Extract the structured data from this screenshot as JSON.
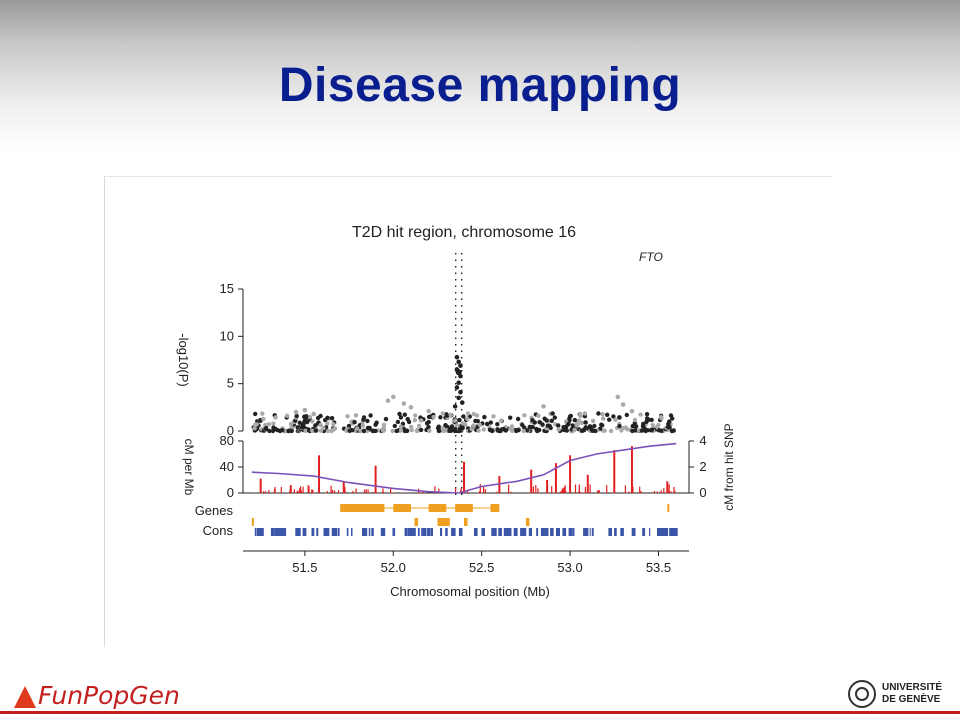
{
  "slide": {
    "title": "Disease mapping"
  },
  "footer": {
    "brand": "FunPopGen",
    "institution_line1": "UNIVERSITÉ",
    "institution_line2": "DE GENÈVE"
  },
  "colors": {
    "title": "#0a1f8f",
    "points_dark": "#222222",
    "points_light": "#aaaaaa",
    "recombination_bars": "#e21f1f",
    "genetic_map_line": "#7b52b8",
    "genes": "#f0a020",
    "conserved": "#3b55a8",
    "footer_red": "#c41f1f"
  },
  "chart_data": {
    "type": "scatter",
    "title": "T2D hit region, chromosome 16",
    "gene_label": "FTO",
    "hit_position_mb": 52.37,
    "xlabel": "Chromosomal position (Mb)",
    "xlim": [
      51.15,
      53.65
    ],
    "xticks": [
      "51.5",
      "52.0",
      "52.5",
      "53.0",
      "53.5"
    ],
    "panels": {
      "association": {
        "ylabel": "-log10(P)",
        "ylim": [
          0,
          15
        ],
        "yticks": [
          "0",
          "5",
          "10",
          "15"
        ],
        "hit_snp": {
          "x": 52.37,
          "y": 6.2
        },
        "hit_cluster": [
          {
            "x": 52.36,
            "y": 7.8
          },
          {
            "x": 52.37,
            "y": 7.3
          },
          {
            "x": 52.38,
            "y": 6.9
          },
          {
            "x": 52.36,
            "y": 6.5
          },
          {
            "x": 52.38,
            "y": 5.8
          },
          {
            "x": 52.37,
            "y": 5.1
          },
          {
            "x": 52.36,
            "y": 4.6
          },
          {
            "x": 52.38,
            "y": 4.1
          },
          {
            "x": 52.37,
            "y": 3.5
          },
          {
            "x": 52.39,
            "y": 3.0
          },
          {
            "x": 52.35,
            "y": 2.6
          }
        ],
        "notable_points": [
          {
            "x": 51.45,
            "y": 2.0
          },
          {
            "x": 51.5,
            "y": 2.2
          },
          {
            "x": 51.55,
            "y": 1.8
          },
          {
            "x": 51.97,
            "y": 3.2
          },
          {
            "x": 52.0,
            "y": 3.6
          },
          {
            "x": 52.06,
            "y": 2.9
          },
          {
            "x": 52.1,
            "y": 2.5
          },
          {
            "x": 52.2,
            "y": 2.1
          },
          {
            "x": 52.85,
            "y": 2.6
          },
          {
            "x": 53.27,
            "y": 3.6
          },
          {
            "x": 53.3,
            "y": 2.8
          },
          {
            "x": 53.35,
            "y": 2.1
          }
        ],
        "background_level": "0–2"
      },
      "recombination": {
        "ylabel_left": "cM per Mb",
        "ylim_left": [
          0,
          80
        ],
        "yticks_left": [
          "0",
          "40",
          "80"
        ],
        "ylabel_right": "cM from hit SNP",
        "ylim_right": [
          0,
          4
        ],
        "yticks_right": [
          "0",
          "2",
          "4"
        ],
        "rate_peaks": [
          {
            "x": 51.25,
            "y": 22
          },
          {
            "x": 51.42,
            "y": 12
          },
          {
            "x": 51.58,
            "y": 58
          },
          {
            "x": 51.72,
            "y": 18
          },
          {
            "x": 51.9,
            "y": 42
          },
          {
            "x": 52.4,
            "y": 48
          },
          {
            "x": 52.6,
            "y": 26
          },
          {
            "x": 52.78,
            "y": 36
          },
          {
            "x": 52.87,
            "y": 20
          },
          {
            "x": 52.92,
            "y": 46
          },
          {
            "x": 53.0,
            "y": 58
          },
          {
            "x": 53.1,
            "y": 28
          },
          {
            "x": 53.25,
            "y": 66
          },
          {
            "x": 53.35,
            "y": 72
          },
          {
            "x": 53.55,
            "y": 18
          }
        ],
        "cumulative_map": [
          {
            "x": 51.2,
            "y": 1.6
          },
          {
            "x": 51.35,
            "y": 1.5
          },
          {
            "x": 51.55,
            "y": 1.3
          },
          {
            "x": 51.75,
            "y": 0.8
          },
          {
            "x": 52.0,
            "y": 0.35
          },
          {
            "x": 52.2,
            "y": 0.1
          },
          {
            "x": 52.37,
            "y": 0.0
          },
          {
            "x": 52.5,
            "y": 0.5
          },
          {
            "x": 52.7,
            "y": 0.9
          },
          {
            "x": 52.85,
            "y": 1.4
          },
          {
            "x": 53.0,
            "y": 2.5
          },
          {
            "x": 53.15,
            "y": 3.0
          },
          {
            "x": 53.3,
            "y": 3.3
          },
          {
            "x": 53.45,
            "y": 3.6
          },
          {
            "x": 53.6,
            "y": 3.8
          }
        ]
      },
      "genes_track": {
        "label": "Genes",
        "row1": [
          [
            51.7,
            51.95
          ],
          [
            52.0,
            52.1
          ],
          [
            52.2,
            52.3
          ],
          [
            52.35,
            52.45
          ],
          [
            52.55,
            52.6
          ],
          [
            53.55,
            53.56
          ]
        ],
        "row2": [
          [
            51.2,
            51.21
          ],
          [
            52.12,
            52.14
          ],
          [
            52.25,
            52.32
          ],
          [
            52.4,
            52.42
          ],
          [
            52.75,
            52.77
          ]
        ]
      },
      "cons_track": {
        "label": "Cons",
        "range": [
          51.2,
          53.6
        ]
      }
    }
  }
}
